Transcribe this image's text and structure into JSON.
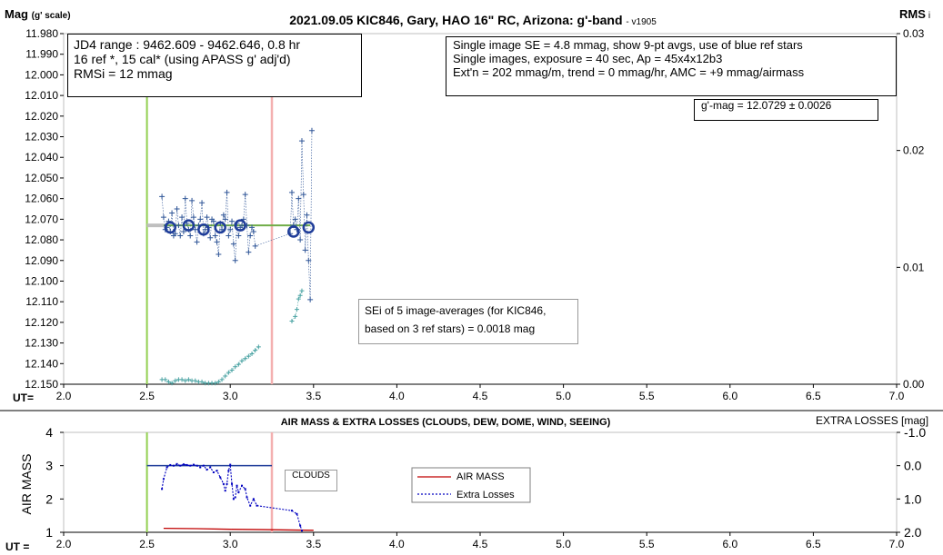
{
  "header": {
    "title": "2021.09.05 KIC846, Gary, HAO 16\" RC, Arizona: g'-band",
    "version": "- v1905",
    "y_left_label": "Mag",
    "y_left_unit": "(g' scale)",
    "y_right_label": "RMS",
    "y_right_sub": "i"
  },
  "info_left": {
    "line1": "JD4 range : 9462.609 - 9462.646,  0.8  hr",
    "line2": "16 ref *, 15 cal* (using APASS g' adj'd)",
    "line3": "RMSi = 12 mmag"
  },
  "info_right": {
    "line1": "Single image SE = 4.8 mmag, show  9-pt avgs, use of blue ref stars",
    "line2": "Single images, exposure = 40 sec, Ap = 45x4x12b3",
    "line3": "Ext'n = 202 mmag/m, trend = 0 mmag/hr, AMC = +9 mmag/airmass"
  },
  "gmag_box": "g'-mag = 12.0729 ± 0.0026",
  "sei_box": {
    "line1": "SEi of 5 image-averages (for KIC846,",
    "line2": "based on 3 ref stars) = 0.0018 mag"
  },
  "lower": {
    "title": "AIR MASS & EXTRA LOSSES (CLOUDS, DEW, DOME, WIND, SEEING)",
    "y_left_label": "AIR MASS",
    "y_right_label": "EXTRA LOSSES [mag]",
    "clouds_label": "CLOUDS",
    "legend_airmass": "AIR MASS",
    "legend_losses": "Extra Losses"
  },
  "ut_label": "UT=",
  "ut_label_lower": "UT =",
  "colors": {
    "mag_points": "#2f5597",
    "avg_circles": "#1f3d99",
    "rms_points": "#4aa3a3",
    "green_line": "#92d050",
    "pink_line": "#f4b0b0",
    "fit_line": "#70ad47",
    "fit_ext": "#bfbfbf",
    "airmass": "#c00000",
    "losses": "#0000c0"
  },
  "chart_data": [
    {
      "type": "scatter",
      "title": "2021.09.05 KIC846, Gary, HAO 16\" RC, Arizona: g'-band",
      "xlabel": "UT=",
      "ylabel": "Mag (g' scale)",
      "y2label": "RMS i",
      "xlim": [
        2.0,
        7.0
      ],
      "ylim": [
        12.15,
        11.98
      ],
      "y2lim": [
        0.0,
        0.03
      ],
      "x_ticks": [
        "2.0",
        "2.5",
        "3.0",
        "3.5",
        "4.0",
        "4.5",
        "5.0",
        "5.5",
        "6.0",
        "6.5",
        "7.0"
      ],
      "y_ticks": [
        "11.980",
        "11.990",
        "12.000",
        "12.010",
        "12.020",
        "12.030",
        "12.040",
        "12.050",
        "12.060",
        "12.070",
        "12.080",
        "12.090",
        "12.100",
        "12.110",
        "12.120",
        "12.130",
        "12.140",
        "12.150"
      ],
      "y2_ticks": [
        "0.03",
        "0.02",
        "0.01",
        "0.00"
      ],
      "vertical_markers": [
        2.5,
        3.25
      ],
      "fit_line": {
        "x": [
          2.6,
          3.48
        ],
        "y": 12.073
      },
      "fit_line_extension": {
        "x": [
          2.5,
          2.6
        ],
        "y": 12.073
      },
      "series": [
        {
          "name": "",
          "values": [
            [
              2.59,
              12.059
            ],
            [
              2.6,
              12.069
            ],
            [
              2.61,
              12.075
            ],
            [
              2.62,
              12.074
            ],
            [
              2.63,
              12.071
            ],
            [
              2.64,
              12.076
            ],
            [
              2.65,
              12.067
            ],
            [
              2.66,
              12.078
            ],
            [
              2.67,
              12.077
            ],
            [
              2.68,
              12.065
            ],
            [
              2.69,
              12.073
            ],
            [
              2.7,
              12.078
            ],
            [
              2.71,
              12.069
            ],
            [
              2.72,
              12.076
            ],
            [
              2.73,
              12.06
            ],
            [
              2.74,
              12.072
            ],
            [
              2.75,
              12.075
            ],
            [
              2.76,
              12.078
            ],
            [
              2.77,
              12.061
            ],
            [
              2.78,
              12.069
            ],
            [
              2.79,
              12.075
            ],
            [
              2.8,
              12.081
            ],
            [
              2.81,
              12.073
            ],
            [
              2.82,
              12.07
            ],
            [
              2.83,
              12.062
            ],
            [
              2.84,
              12.077
            ],
            [
              2.85,
              12.075
            ],
            [
              2.86,
              12.069
            ],
            [
              2.87,
              12.074
            ],
            [
              2.88,
              12.079
            ],
            [
              2.89,
              12.07
            ],
            [
              2.9,
              12.071
            ],
            [
              2.91,
              12.078
            ],
            [
              2.92,
              12.081
            ],
            [
              2.93,
              12.087
            ],
            [
              2.94,
              12.072
            ],
            [
              2.95,
              12.075
            ],
            [
              2.96,
              12.068
            ],
            [
              2.97,
              12.07
            ],
            [
              2.98,
              12.057
            ],
            [
              2.99,
              12.078
            ],
            [
              3.0,
              12.075
            ],
            [
              3.01,
              12.071
            ],
            [
              3.02,
              12.082
            ],
            [
              3.03,
              12.09
            ],
            [
              3.04,
              12.072
            ],
            [
              3.05,
              12.078
            ],
            [
              3.06,
              12.074
            ],
            [
              3.07,
              12.073
            ],
            [
              3.08,
              12.07
            ],
            [
              3.09,
              12.058
            ],
            [
              3.1,
              12.073
            ],
            [
              3.11,
              12.086
            ],
            [
              3.12,
              12.078
            ],
            [
              3.13,
              12.074
            ],
            [
              3.14,
              12.076
            ],
            [
              3.15,
              12.083
            ],
            [
              3.36,
              12.077
            ],
            [
              3.37,
              12.057
            ],
            [
              3.38,
              12.073
            ],
            [
              3.39,
              12.07
            ],
            [
              3.4,
              12.075
            ],
            [
              3.41,
              12.06
            ],
            [
              3.42,
              12.08
            ],
            [
              3.43,
              12.032
            ],
            [
              3.44,
              12.058
            ],
            [
              3.45,
              12.085
            ],
            [
              3.46,
              12.068
            ],
            [
              3.47,
              12.09
            ],
            [
              3.48,
              12.109
            ],
            [
              3.49,
              12.027
            ]
          ]
        },
        {
          "name": "",
          "values": [
            [
              2.64,
              12.074
            ],
            [
              2.75,
              12.073
            ],
            [
              2.84,
              12.075
            ],
            [
              2.94,
              12.074
            ],
            [
              3.06,
              12.073
            ],
            [
              3.38,
              12.076
            ],
            [
              3.47,
              12.074
            ]
          ]
        },
        {
          "name": "",
          "values": [
            [
              2.59,
              0.0004
            ],
            [
              2.61,
              0.0004
            ],
            [
              2.63,
              0.0002
            ],
            [
              2.65,
              0.0001
            ],
            [
              2.67,
              0.0003
            ],
            [
              2.69,
              0.0004
            ],
            [
              2.71,
              0.0004
            ],
            [
              2.73,
              0.0003
            ],
            [
              2.75,
              0.0004
            ],
            [
              2.77,
              0.0003
            ],
            [
              2.79,
              0.0003
            ],
            [
              2.81,
              0.0002
            ],
            [
              2.83,
              0.0002
            ],
            [
              2.85,
              0.0001
            ],
            [
              2.87,
              0.0001
            ],
            [
              2.89,
              0.0001
            ],
            [
              2.91,
              0.0001
            ],
            [
              2.93,
              0.0002
            ],
            [
              2.95,
              0.0004
            ],
            [
              2.97,
              0.0007
            ],
            [
              2.99,
              0.001
            ],
            [
              3.01,
              0.0012
            ],
            [
              3.03,
              0.0015
            ],
            [
              3.05,
              0.0017
            ],
            [
              3.07,
              0.002
            ],
            [
              3.09,
              0.0022
            ],
            [
              3.11,
              0.0024
            ],
            [
              3.13,
              0.0026
            ],
            [
              3.15,
              0.0029
            ],
            [
              3.17,
              0.0032
            ],
            [
              3.37,
              0.0054
            ],
            [
              3.39,
              0.0058
            ],
            [
              3.4,
              0.0064
            ],
            [
              3.41,
              0.0073
            ],
            [
              3.42,
              0.0076
            ],
            [
              3.43,
              0.008
            ]
          ]
        }
      ]
    },
    {
      "type": "line",
      "title": "AIR MASS & EXTRA LOSSES (CLOUDS, DEW, DOME, WIND, SEEING)",
      "xlabel": "UT =",
      "ylabel": "AIR MASS",
      "y2label": "EXTRA LOSSES [mag]",
      "xlim": [
        2.0,
        7.0
      ],
      "ylim": [
        1,
        4
      ],
      "y2lim": [
        2.0,
        -1.0
      ],
      "x_ticks": [
        "2.0",
        "2.5",
        "3.0",
        "3.5",
        "4.0",
        "4.5",
        "5.0",
        "5.5",
        "6.0",
        "6.5",
        "7.0"
      ],
      "y_ticks": [
        "1",
        "2",
        "3",
        "4"
      ],
      "y2_ticks": [
        "-1.0",
        "0.0",
        "1.0",
        "2.0"
      ],
      "vertical_markers": [
        2.5,
        3.25
      ],
      "zero_line": {
        "x": [
          2.5,
          3.25
        ],
        "y": 0.0
      },
      "series": [
        {
          "name": "AIR MASS",
          "values": [
            [
              2.6,
              1.12
            ],
            [
              2.8,
              1.11
            ],
            [
              3.0,
              1.09
            ],
            [
              3.2,
              1.08
            ],
            [
              3.5,
              1.06
            ]
          ]
        },
        {
          "name": "Extra Losses",
          "values": [
            [
              2.59,
              0.7
            ],
            [
              2.6,
              0.4
            ],
            [
              2.62,
              0.05
            ],
            [
              2.64,
              -0.02
            ],
            [
              2.66,
              0.0
            ],
            [
              2.68,
              -0.05
            ],
            [
              2.7,
              0.0
            ],
            [
              2.72,
              -0.04
            ],
            [
              2.74,
              -0.02
            ],
            [
              2.76,
              0.0
            ],
            [
              2.78,
              -0.03
            ],
            [
              2.8,
              0.0
            ],
            [
              2.82,
              0.05
            ],
            [
              2.84,
              0.0
            ],
            [
              2.86,
              0.12
            ],
            [
              2.88,
              0.05
            ],
            [
              2.9,
              0.2
            ],
            [
              2.92,
              0.15
            ],
            [
              2.94,
              0.35
            ],
            [
              2.96,
              0.55
            ],
            [
              2.97,
              0.75
            ],
            [
              2.98,
              0.55
            ],
            [
              2.99,
              0.15
            ],
            [
              3.0,
              -0.03
            ],
            [
              3.01,
              0.55
            ],
            [
              3.02,
              1.0
            ],
            [
              3.03,
              0.95
            ],
            [
              3.04,
              0.6
            ],
            [
              3.05,
              0.8
            ],
            [
              3.07,
              0.6
            ],
            [
              3.09,
              0.7
            ],
            [
              3.1,
              0.95
            ],
            [
              3.12,
              1.2
            ],
            [
              3.14,
              1.0
            ],
            [
              3.16,
              1.2
            ],
            [
              3.37,
              1.35
            ],
            [
              3.4,
              1.45
            ],
            [
              3.42,
              1.8
            ],
            [
              3.43,
              1.95
            ]
          ]
        }
      ]
    }
  ]
}
